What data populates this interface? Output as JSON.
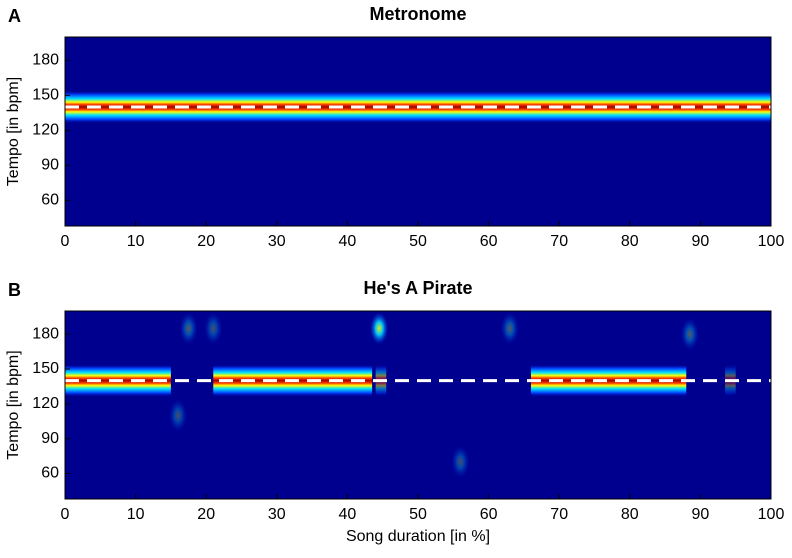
{
  "chart_data": [
    {
      "type": "heatmap",
      "panel_label": "A",
      "title": "Metronome",
      "ylabel": "Tempo [in bpm]",
      "xlim": [
        0,
        100
      ],
      "xticks": [
        0,
        10,
        20,
        30,
        40,
        50,
        60,
        70,
        80,
        90,
        100
      ],
      "ylim": [
        38,
        200
      ],
      "yticks": [
        60,
        90,
        120,
        150,
        180
      ],
      "background_color": "#00008f",
      "reference_tempo": 140,
      "reference_color": "#ffffff",
      "segments": [
        {
          "x": [
            0,
            100
          ],
          "tempo": 140,
          "intensity": 1
        }
      ],
      "blobs": []
    },
    {
      "type": "heatmap",
      "panel_label": "B",
      "title": "He's A Pirate",
      "xlabel": "Song duration [in %]",
      "ylabel": "Tempo [in bpm]",
      "xlim": [
        0,
        100
      ],
      "xticks": [
        0,
        10,
        20,
        30,
        40,
        50,
        60,
        70,
        80,
        90,
        100
      ],
      "ylim": [
        38,
        200
      ],
      "yticks": [
        60,
        90,
        120,
        150,
        180
      ],
      "background_color": "#00008f",
      "reference_tempo": 140,
      "reference_color": "#ffffff",
      "segments": [
        {
          "x": [
            0,
            15
          ],
          "tempo": 140,
          "intensity": 1
        },
        {
          "x": [
            21,
            43.5
          ],
          "tempo": 140,
          "intensity": 1
        },
        {
          "x": [
            44,
            45.5
          ],
          "tempo": 140,
          "intensity": 0.5
        },
        {
          "x": [
            66,
            88
          ],
          "tempo": 140,
          "intensity": 1
        },
        {
          "x": [
            93.5,
            95
          ],
          "tempo": 140,
          "intensity": 0.35
        }
      ],
      "blobs": [
        {
          "x": 44.5,
          "tempo": 185,
          "intensity": 0.9
        },
        {
          "x": 17.5,
          "tempo": 185,
          "intensity": 0.35
        },
        {
          "x": 21,
          "tempo": 185,
          "intensity": 0.3
        },
        {
          "x": 63,
          "tempo": 185,
          "intensity": 0.35
        },
        {
          "x": 88.5,
          "tempo": 180,
          "intensity": 0.35
        },
        {
          "x": 16,
          "tempo": 110,
          "intensity": 0.3
        },
        {
          "x": 56,
          "tempo": 70,
          "intensity": 0.3
        }
      ]
    }
  ]
}
